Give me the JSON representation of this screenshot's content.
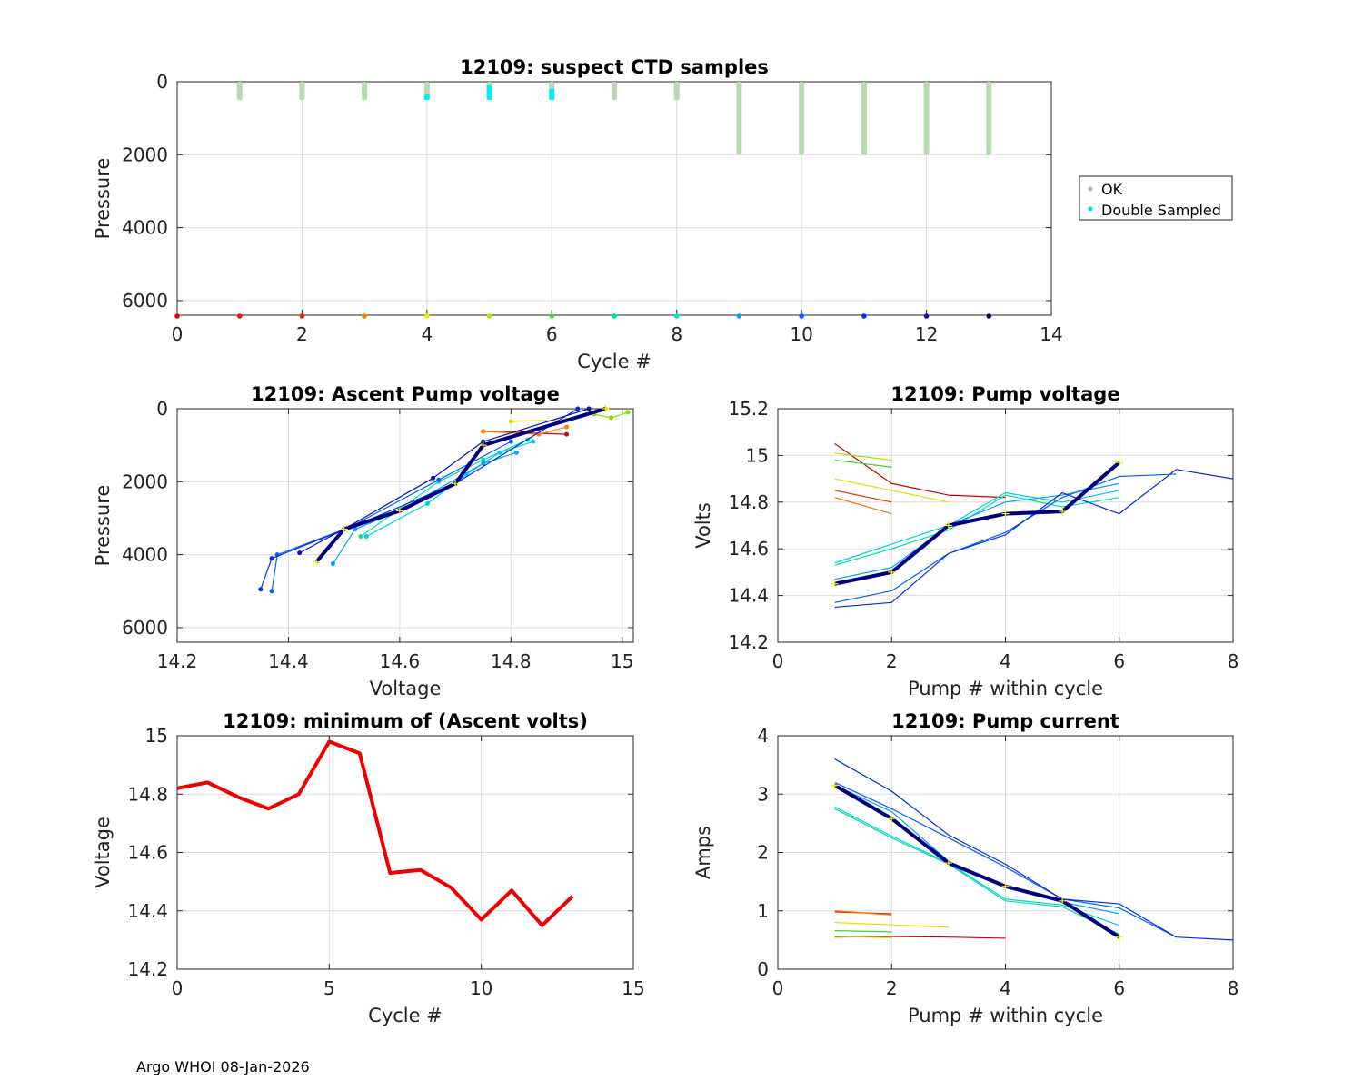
{
  "footer": "Argo WHOI 08-Jan-2026",
  "chart_data": [
    {
      "id": "suspect",
      "type": "scatter",
      "title": "12109: suspect CTD samples",
      "xlabel": "Cycle #",
      "ylabel": "Pressure",
      "xlim": [
        0,
        14
      ],
      "ylim": [
        6400,
        0
      ],
      "xticks": [
        "0",
        "2",
        "4",
        "6",
        "8",
        "10",
        "12",
        "14"
      ],
      "yticks": [
        "0",
        "2000",
        "4000",
        "6000"
      ],
      "legend": [
        "OK",
        "Double Sampled"
      ],
      "ok_columns": [
        {
          "cycle": 1,
          "top": 0,
          "bottom": 500
        },
        {
          "cycle": 2,
          "top": 0,
          "bottom": 500
        },
        {
          "cycle": 3,
          "top": 0,
          "bottom": 500
        },
        {
          "cycle": 4,
          "top": 0,
          "bottom": 500
        },
        {
          "cycle": 5,
          "top": 0,
          "bottom": 500
        },
        {
          "cycle": 6,
          "top": 0,
          "bottom": 500
        },
        {
          "cycle": 7,
          "top": 0,
          "bottom": 500
        },
        {
          "cycle": 8,
          "top": 0,
          "bottom": 500
        },
        {
          "cycle": 9,
          "top": 0,
          "bottom": 2000
        },
        {
          "cycle": 10,
          "top": 0,
          "bottom": 2000
        },
        {
          "cycle": 11,
          "top": 0,
          "bottom": 2000
        },
        {
          "cycle": 12,
          "top": 0,
          "bottom": 2000
        },
        {
          "cycle": 13,
          "top": 0,
          "bottom": 2000
        }
      ],
      "double_sampled": [
        {
          "cycle": 4,
          "top": 350,
          "bottom": 500
        },
        {
          "cycle": 5,
          "top": 100,
          "bottom": 500
        },
        {
          "cycle": 6,
          "top": 180,
          "bottom": 500
        }
      ],
      "cycle_markers": [
        {
          "cycle": 0,
          "color": "#e00000"
        },
        {
          "cycle": 1,
          "color": "#e02000"
        },
        {
          "cycle": 2,
          "color": "#e03000"
        },
        {
          "cycle": 3,
          "color": "#ff8000"
        },
        {
          "cycle": 4,
          "color": "#f0f000"
        },
        {
          "cycle": 5,
          "color": "#a0f000"
        },
        {
          "cycle": 6,
          "color": "#40e040"
        },
        {
          "cycle": 7,
          "color": "#00e0a0"
        },
        {
          "cycle": 8,
          "color": "#00e0e0"
        },
        {
          "cycle": 9,
          "color": "#00a0ff"
        },
        {
          "cycle": 10,
          "color": "#0060ff"
        },
        {
          "cycle": 11,
          "color": "#0030e0"
        },
        {
          "cycle": 12,
          "color": "#0010c0"
        },
        {
          "cycle": 13,
          "color": "#000080"
        }
      ]
    },
    {
      "id": "ascent",
      "type": "line",
      "title": "12109: Ascent Pump voltage",
      "xlabel": "Voltage",
      "ylabel": "Pressure",
      "xlim": [
        14.2,
        15.02
      ],
      "ylim": [
        6400,
        0
      ],
      "xticks": [
        "14.2",
        "14.4",
        "14.6",
        "14.8",
        "15"
      ],
      "yticks": [
        "0",
        "2000",
        "4000",
        "6000"
      ],
      "series": [
        {
          "color": "#e00000",
          "points": [
            [
              14.85,
              700
            ],
            [
              14.82,
              650
            ],
            [
              14.75,
              620
            ],
            [
              14.9,
              700
            ]
          ]
        },
        {
          "color": "#ff8000",
          "points": [
            [
              14.75,
              620
            ],
            [
              14.85,
              700
            ],
            [
              14.9,
              500
            ]
          ]
        },
        {
          "color": "#e0e000",
          "points": [
            [
              14.8,
              350
            ],
            [
              14.9,
              300
            ],
            [
              14.97,
              0
            ]
          ]
        },
        {
          "color": "#80e000",
          "points": [
            [
              14.95,
              150
            ],
            [
              14.98,
              250
            ],
            [
              15.01,
              100
            ]
          ]
        },
        {
          "color": "#00e0a0",
          "points": [
            [
              14.53,
              3500
            ],
            [
              14.6,
              2750
            ],
            [
              14.67,
              2000
            ],
            [
              14.75,
              1400
            ],
            [
              14.83,
              850
            ]
          ]
        },
        {
          "color": "#00d0e0",
          "points": [
            [
              14.54,
              3500
            ],
            [
              14.65,
              2600
            ],
            [
              14.72,
              1800
            ],
            [
              14.78,
              1200
            ],
            [
              14.84,
              900
            ]
          ]
        },
        {
          "color": "#00a0ff",
          "points": [
            [
              14.48,
              4250
            ],
            [
              14.52,
              3300
            ],
            [
              14.6,
              2800
            ],
            [
              14.75,
              1500
            ],
            [
              14.81,
              1200
            ]
          ]
        },
        {
          "color": "#0060ff",
          "points": [
            [
              14.37,
              5000
            ],
            [
              14.38,
              4000
            ],
            [
              14.51,
              3250
            ],
            [
              14.67,
              1950
            ],
            [
              14.8,
              900
            ]
          ]
        },
        {
          "color": "#0030e0",
          "points": [
            [
              14.35,
              4950
            ],
            [
              14.37,
              4100
            ],
            [
              14.52,
              3200
            ],
            [
              14.7,
              2050
            ],
            [
              14.92,
              0
            ]
          ]
        },
        {
          "color": "#0010c0",
          "points": [
            [
              14.42,
              3950
            ],
            [
              14.5,
              3300
            ],
            [
              14.66,
              1900
            ],
            [
              14.75,
              900
            ],
            [
              14.94,
              0
            ]
          ]
        },
        {
          "color": "#000080",
          "points": [
            [
              14.45,
              4200
            ],
            [
              14.5,
              3300
            ],
            [
              14.6,
              2800
            ],
            [
              14.7,
              2050
            ],
            [
              14.75,
              1000
            ],
            [
              14.97,
              0
            ]
          ],
          "bold": true
        }
      ]
    },
    {
      "id": "pumpv",
      "type": "line",
      "title": "12109: Pump voltage",
      "xlabel": "Pump # within cycle",
      "ylabel": "Volts",
      "xlim": [
        0,
        8
      ],
      "ylim": [
        14.2,
        15.2
      ],
      "xticks": [
        "0",
        "2",
        "4",
        "6",
        "8"
      ],
      "yticks": [
        "14.2",
        "14.4",
        "14.6",
        "14.8",
        "15",
        "15.2"
      ],
      "series": [
        {
          "color": "#d00000",
          "points": [
            [
              1,
              15.05
            ],
            [
              2,
              14.88
            ],
            [
              3,
              14.83
            ],
            [
              4,
              14.82
            ]
          ]
        },
        {
          "color": "#e03000",
          "points": [
            [
              1,
              14.85
            ],
            [
              2,
              14.8
            ]
          ]
        },
        {
          "color": "#f07000",
          "points": [
            [
              1,
              14.82
            ],
            [
              2,
              14.75
            ]
          ]
        },
        {
          "color": "#e0e000",
          "points": [
            [
              1,
              14.9
            ],
            [
              2,
              14.85
            ],
            [
              3,
              14.8
            ]
          ]
        },
        {
          "color": "#a0e000",
          "points": [
            [
              1,
              15.01
            ],
            [
              2,
              14.98
            ]
          ]
        },
        {
          "color": "#40d040",
          "points": [
            [
              1,
              14.98
            ],
            [
              2,
              14.95
            ]
          ]
        },
        {
          "color": "#00e0a0",
          "points": [
            [
              1,
              14.53
            ],
            [
              2,
              14.6
            ],
            [
              3,
              14.68
            ],
            [
              4,
              14.83
            ],
            [
              5,
              14.78
            ],
            [
              6,
              14.82
            ]
          ]
        },
        {
          "color": "#00d0e0",
          "points": [
            [
              1,
              14.54
            ],
            [
              2,
              14.62
            ],
            [
              3,
              14.7
            ],
            [
              4,
              14.84
            ],
            [
              5,
              14.8
            ],
            [
              6,
              14.85
            ]
          ]
        },
        {
          "color": "#00a0ff",
          "points": [
            [
              1,
              14.47
            ],
            [
              2,
              14.52
            ],
            [
              3,
              14.7
            ],
            [
              4,
              14.8
            ],
            [
              5,
              14.83
            ],
            [
              6,
              14.88
            ]
          ]
        },
        {
          "color": "#0060ff",
          "points": [
            [
              1,
              14.37
            ],
            [
              2,
              14.42
            ],
            [
              3,
              14.58
            ],
            [
              4,
              14.67
            ],
            [
              5,
              14.82
            ],
            [
              6,
              14.91
            ],
            [
              7,
              14.92
            ]
          ]
        },
        {
          "color": "#0030e0",
          "points": [
            [
              1,
              14.35
            ],
            [
              2,
              14.37
            ],
            [
              3,
              14.58
            ],
            [
              4,
              14.66
            ],
            [
              5,
              14.84
            ],
            [
              6,
              14.75
            ],
            [
              7,
              14.94
            ],
            [
              8,
              14.9
            ]
          ]
        },
        {
          "color": "#000080",
          "points": [
            [
              1,
              14.45
            ],
            [
              2,
              14.5
            ],
            [
              3,
              14.7
            ],
            [
              4,
              14.75
            ],
            [
              5,
              14.76
            ],
            [
              6,
              14.97
            ]
          ],
          "bold": true
        }
      ]
    },
    {
      "id": "minv",
      "type": "line",
      "title": "12109: minimum of (Ascent volts)",
      "xlabel": "Cycle #",
      "ylabel": "Voltage",
      "xlim": [
        0,
        15
      ],
      "ylim": [
        14.2,
        15
      ],
      "xticks": [
        "0",
        "5",
        "10",
        "15"
      ],
      "yticks": [
        "14.2",
        "14.4",
        "14.6",
        "14.8",
        "15"
      ],
      "series": [
        {
          "color": "#ee0000",
          "bold": true,
          "points": [
            [
              0,
              14.82
            ],
            [
              1,
              14.84
            ],
            [
              2,
              14.79
            ],
            [
              3,
              14.75
            ],
            [
              4,
              14.8
            ],
            [
              5,
              14.98
            ],
            [
              6,
              14.94
            ],
            [
              7,
              14.53
            ],
            [
              8,
              14.54
            ],
            [
              9,
              14.48
            ],
            [
              10,
              14.37
            ],
            [
              11,
              14.47
            ],
            [
              12,
              14.35
            ],
            [
              13,
              14.45
            ]
          ]
        }
      ]
    },
    {
      "id": "pumpc",
      "type": "line",
      "title": "12109: Pump current",
      "xlabel": "Pump # within cycle",
      "ylabel": "Amps",
      "xlim": [
        0,
        8
      ],
      "ylim": [
        0,
        4
      ],
      "xticks": [
        "0",
        "2",
        "4",
        "6",
        "8"
      ],
      "yticks": [
        "0",
        "1",
        "2",
        "3",
        "4"
      ],
      "series": [
        {
          "color": "#d00000",
          "points": [
            [
              1,
              0.55
            ],
            [
              2,
              0.56
            ],
            [
              3,
              0.55
            ],
            [
              4,
              0.53
            ]
          ]
        },
        {
          "color": "#e03000",
          "points": [
            [
              1,
              0.98
            ],
            [
              2,
              0.95
            ]
          ]
        },
        {
          "color": "#f07000",
          "points": [
            [
              1,
              1.0
            ],
            [
              2,
              0.93
            ]
          ]
        },
        {
          "color": "#e0e000",
          "points": [
            [
              1,
              0.8
            ],
            [
              2,
              0.76
            ],
            [
              3,
              0.72
            ]
          ]
        },
        {
          "color": "#40d040",
          "points": [
            [
              1,
              0.66
            ],
            [
              2,
              0.64
            ]
          ]
        },
        {
          "color": "#a0e000",
          "points": [
            [
              1,
              0.56
            ],
            [
              2,
              0.54
            ]
          ]
        },
        {
          "color": "#00e0a0",
          "points": [
            [
              1,
              2.75
            ],
            [
              2,
              2.25
            ],
            [
              3,
              1.8
            ],
            [
              4,
              1.17
            ],
            [
              5,
              1.07
            ],
            [
              6,
              0.6
            ]
          ]
        },
        {
          "color": "#00d0e0",
          "points": [
            [
              1,
              2.78
            ],
            [
              2,
              2.28
            ],
            [
              3,
              1.82
            ],
            [
              4,
              1.2
            ],
            [
              5,
              1.1
            ],
            [
              6,
              0.75
            ]
          ]
        },
        {
          "color": "#00a0ff",
          "points": [
            [
              1,
              3.15
            ],
            [
              2,
              2.7
            ],
            [
              3,
              1.85
            ],
            [
              4,
              1.4
            ],
            [
              5,
              1.15
            ],
            [
              6,
              0.95
            ]
          ]
        },
        {
          "color": "#0060ff",
          "points": [
            [
              1,
              3.2
            ],
            [
              2,
              2.75
            ],
            [
              3,
              2.25
            ],
            [
              4,
              1.75
            ],
            [
              5,
              1.2
            ],
            [
              6,
              1.05
            ],
            [
              7,
              0.55
            ]
          ]
        },
        {
          "color": "#0030e0",
          "points": [
            [
              1,
              3.6
            ],
            [
              2,
              3.05
            ],
            [
              3,
              2.3
            ],
            [
              4,
              1.8
            ],
            [
              5,
              1.2
            ],
            [
              6,
              1.12
            ],
            [
              7,
              0.55
            ],
            [
              8,
              0.5
            ]
          ]
        },
        {
          "color": "#000080",
          "points": [
            [
              1,
              3.15
            ],
            [
              2,
              2.58
            ],
            [
              3,
              1.82
            ],
            [
              4,
              1.42
            ],
            [
              5,
              1.17
            ],
            [
              6,
              0.55
            ]
          ],
          "bold": true
        }
      ]
    }
  ]
}
